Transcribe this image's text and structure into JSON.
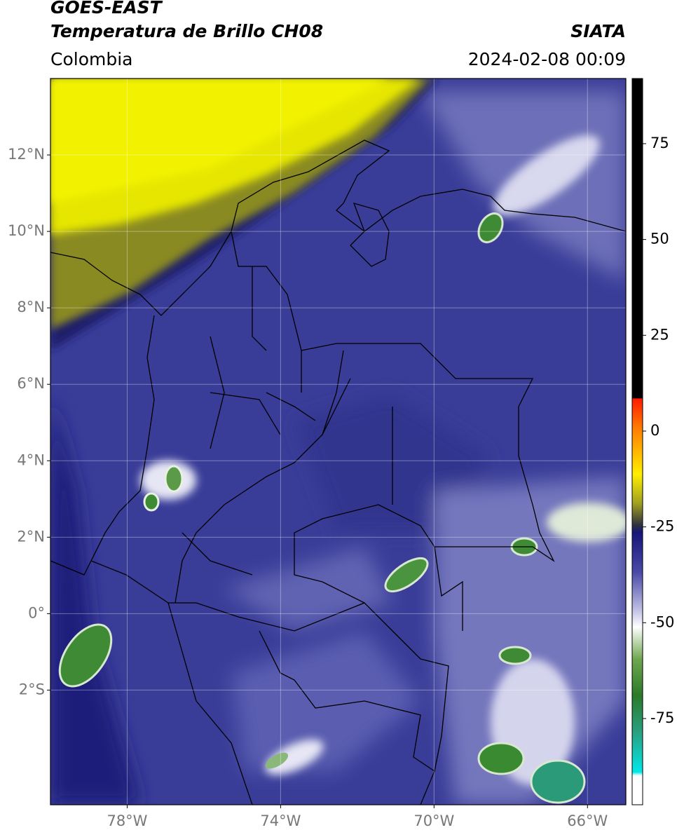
{
  "header": {
    "satellite": "GOES-EAST",
    "product": "Temperatura de Brillo CH08",
    "org": "SIATA",
    "region": "Colombia",
    "datetime": "2024-02-08 00:09"
  },
  "map": {
    "xlim": [
      -80,
      -65
    ],
    "ylim": [
      -5,
      14
    ],
    "xticks": [
      {
        "value": -78,
        "label": "78°W"
      },
      {
        "value": -74,
        "label": "74°W"
      },
      {
        "value": -70,
        "label": "70°W"
      },
      {
        "value": -66,
        "label": "66°W"
      }
    ],
    "yticks": [
      {
        "value": 12,
        "label": "12°N"
      },
      {
        "value": 10,
        "label": "10°N"
      },
      {
        "value": 8,
        "label": "8°N"
      },
      {
        "value": 6,
        "label": "6°N"
      },
      {
        "value": 4,
        "label": "4°N"
      },
      {
        "value": 2,
        "label": "2°N"
      },
      {
        "value": 0,
        "label": "0°"
      },
      {
        "value": -2,
        "label": "2°S"
      }
    ],
    "grid": true
  },
  "colorbar": {
    "lim": [
      -97.5,
      92
    ],
    "ticks": [
      75,
      50,
      25,
      0,
      -25,
      -50,
      -75
    ]
  }
}
